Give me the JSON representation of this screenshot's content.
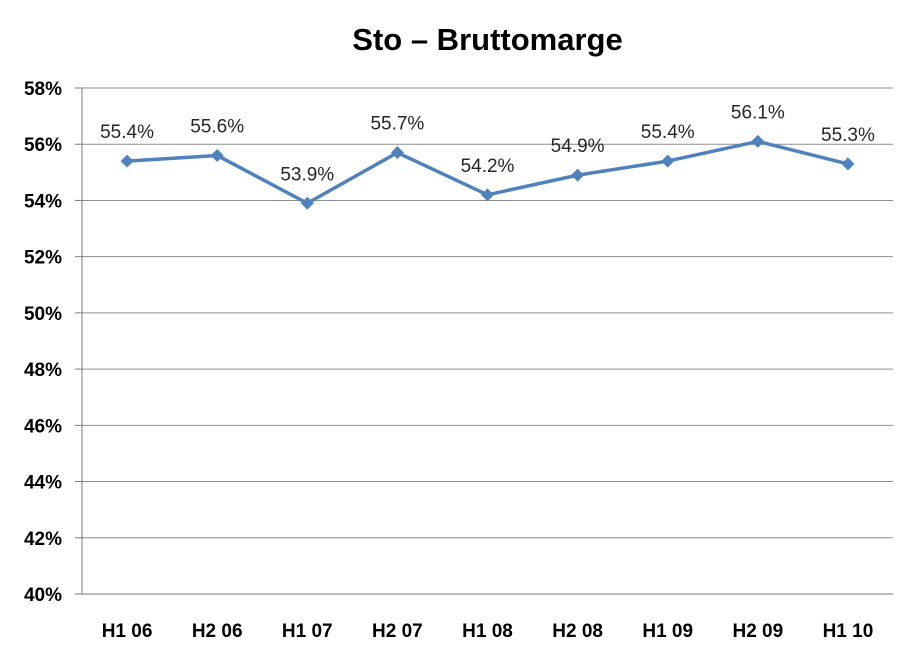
{
  "title": "Sto – Bruttomarge",
  "chart_data": {
    "type": "line",
    "title": "Sto – Bruttomarge",
    "categories": [
      "H1 06",
      "H2 06",
      "H1 07",
      "H2 07",
      "H1 08",
      "H2 08",
      "H1 09",
      "H2 09",
      "H1 10"
    ],
    "series": [
      {
        "name": "Bruttomarge",
        "values": [
          55.4,
          55.6,
          53.9,
          55.7,
          54.2,
          54.9,
          55.4,
          56.1,
          55.3
        ],
        "data_labels": [
          "55.4%",
          "55.6%",
          "53.9%",
          "55.7%",
          "54.2%",
          "54.9%",
          "55.4%",
          "56.1%",
          "55.3%"
        ]
      }
    ],
    "xlabel": "",
    "ylabel": "",
    "ylim": [
      40,
      58
    ],
    "ytick_step": 2,
    "ytick_labels": [
      "40%",
      "42%",
      "44%",
      "46%",
      "48%",
      "50%",
      "52%",
      "54%",
      "56%",
      "58%"
    ],
    "grid": true,
    "legend": "none",
    "marker": "diamond",
    "colors": {
      "line": "#4F81BD",
      "marker": "#4F81BD",
      "gridline": "#8E8E8E",
      "axis": "#7A7A7A",
      "tick_label": "#000000",
      "data_label": "#262626",
      "title": "#000000",
      "background": "#FFFFFF"
    }
  }
}
